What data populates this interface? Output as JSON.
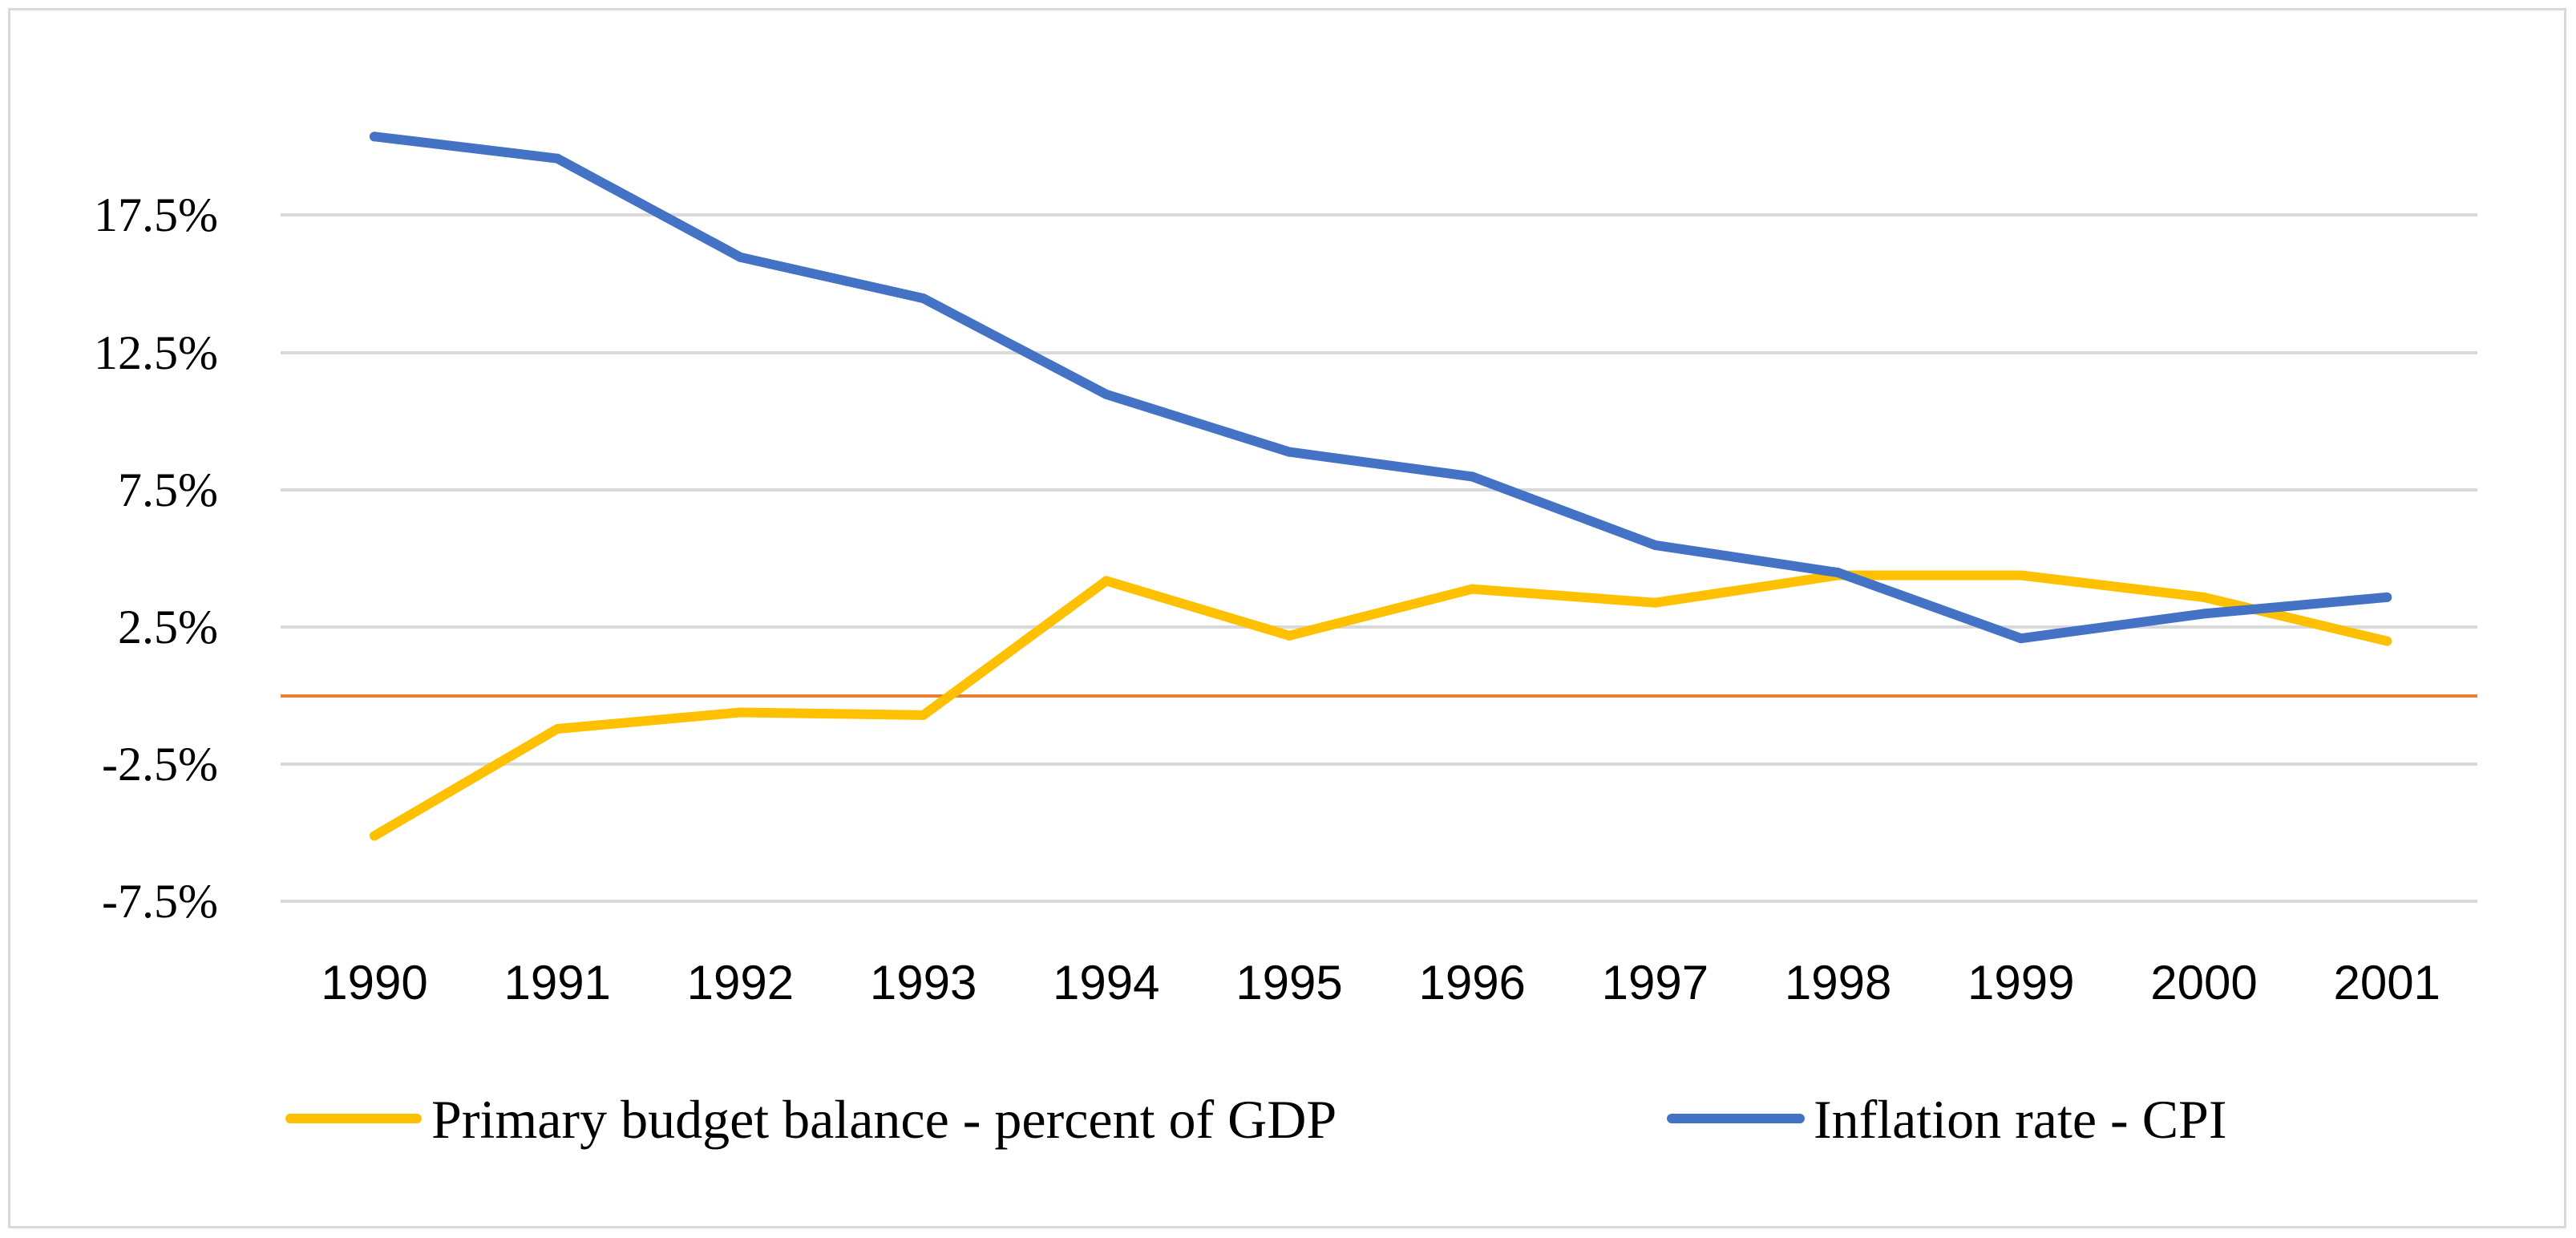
{
  "chart_data": {
    "type": "line",
    "title": "",
    "xlabel": "",
    "ylabel": "",
    "categories": [
      "1990",
      "1991",
      "1992",
      "1993",
      "1994",
      "1995",
      "1996",
      "1997",
      "1998",
      "1999",
      "2000",
      "2001"
    ],
    "y_axis": {
      "min": -7.5,
      "max": 17.5,
      "ticks": [
        17.5,
        12.5,
        7.5,
        2.5,
        -2.5,
        -7.5
      ],
      "tick_labels": [
        "17.5%",
        "12.5%",
        "7.5%",
        "2.5%",
        "-2.5%",
        "-7.5%"
      ],
      "tick_positions": [
        17.5,
        12.5,
        7.5,
        2.5,
        -2.5,
        -7.5
      ],
      "zero_line_value": 0
    },
    "grid": true,
    "legend_position": "bottom",
    "series": [
      {
        "name": "Primary budget balance - percent of GDP",
        "color": "#FFC000",
        "values": [
          -5.1,
          -1.2,
          -0.6,
          -0.7,
          4.2,
          2.2,
          3.9,
          3.4,
          4.4,
          4.4,
          3.6,
          2.0
        ]
      },
      {
        "name": "Inflation rate - CPI",
        "color": "#4472C4",
        "values": [
          20.4,
          19.6,
          16.0,
          14.5,
          11.0,
          8.9,
          8.0,
          5.5,
          4.5,
          2.1,
          3.0,
          3.6
        ]
      }
    ],
    "zero_line_color": "#ED7D31",
    "gridline_color": "#D9D9D9"
  }
}
